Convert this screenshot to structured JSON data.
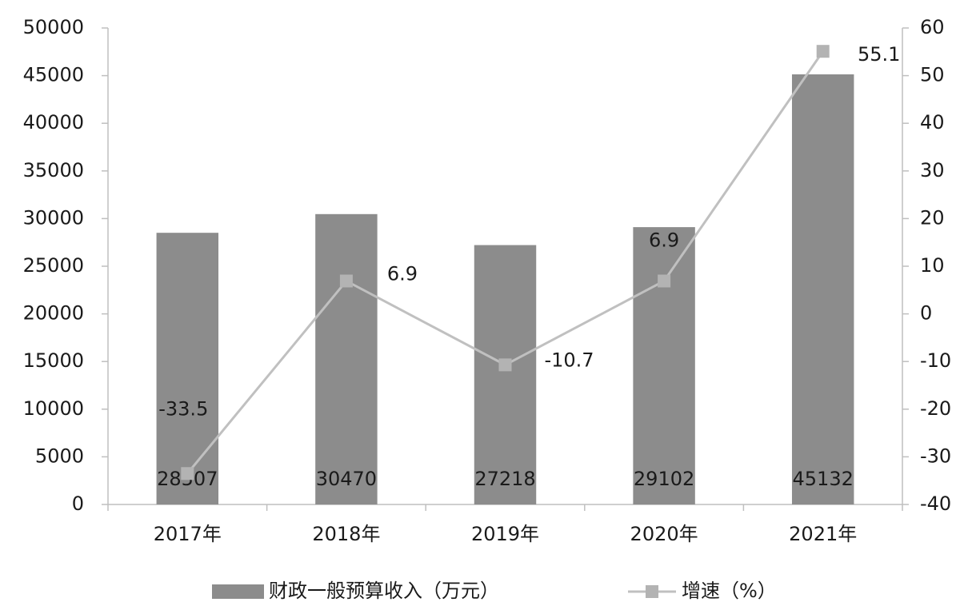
{
  "chart_data": {
    "type": "bar",
    "categories": [
      "2017年",
      "2018年",
      "2019年",
      "2020年",
      "2021年"
    ],
    "series": [
      {
        "name": "财政一般预算收入（万元）",
        "type": "bar",
        "color": "#8c8c8c",
        "values": [
          28507,
          30470,
          27218,
          29102,
          45132
        ]
      },
      {
        "name": "增速（%）",
        "type": "line",
        "axis": "y2",
        "color": "#c0c0c0",
        "marker_color": "#b3b3b3",
        "values": [
          -33.5,
          6.9,
          -10.7,
          6.9,
          55.1
        ]
      }
    ],
    "ylim": [
      0,
      50000
    ],
    "yticks": [
      0,
      5000,
      10000,
      15000,
      20000,
      25000,
      30000,
      35000,
      40000,
      45000,
      50000
    ],
    "y2lim": [
      -40,
      60
    ],
    "y2ticks": [
      -40,
      -30,
      -20,
      -10,
      0,
      10,
      20,
      30,
      40,
      50,
      60
    ],
    "grid": false,
    "legend": "bottom"
  }
}
